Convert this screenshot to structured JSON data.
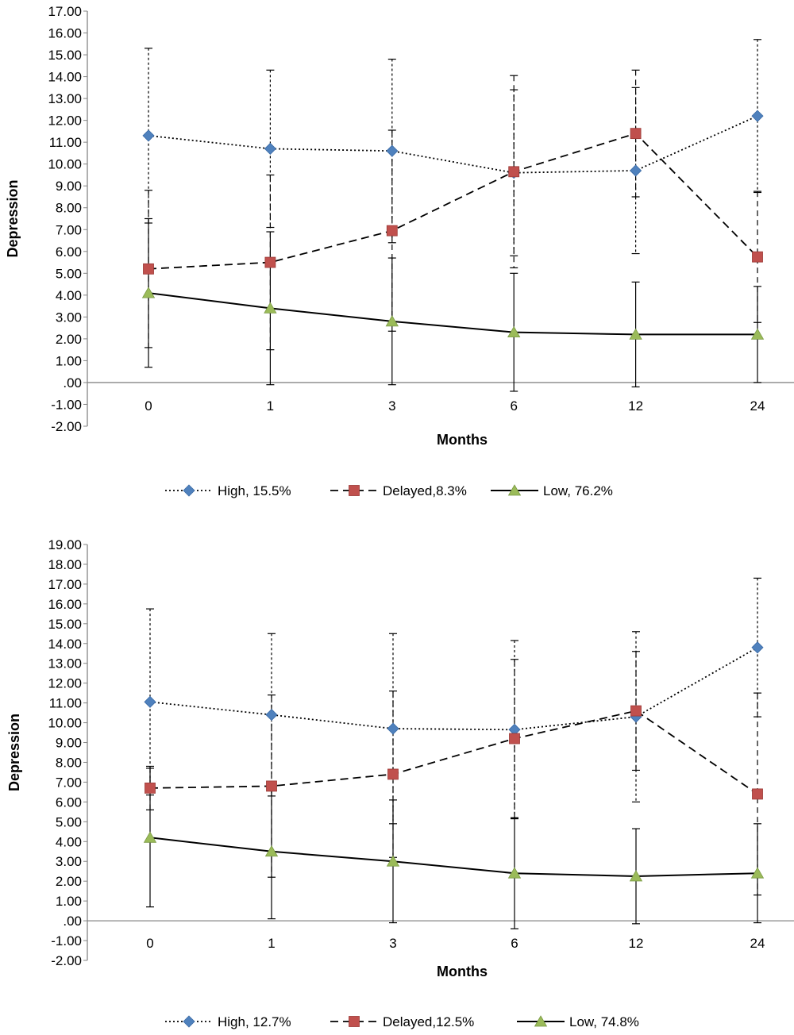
{
  "chart_data": [
    {
      "type": "line",
      "title": "",
      "xlabel": "Months",
      "ylabel": "Depression",
      "categories": [
        "0",
        "1",
        "3",
        "6",
        "12",
        "24"
      ],
      "ylim": [
        -2,
        17
      ],
      "ytick_step": 1,
      "ytick_labels": [
        "-2.00",
        "-1.00",
        ".00",
        "1.00",
        "2.00",
        "3.00",
        "4.00",
        "5.00",
        "6.00",
        "7.00",
        "8.00",
        "9.00",
        "10.00",
        "11.00",
        "12.00",
        "13.00",
        "14.00",
        "15.00",
        "16.00",
        "17.00"
      ],
      "grid": false,
      "legend_position": "bottom",
      "series": [
        {
          "name": "High, 15.5%",
          "marker": "diamond",
          "line_style": "dotted",
          "color": "#4f81bd",
          "values": [
            11.3,
            10.7,
            10.6,
            9.6,
            9.7,
            12.2
          ],
          "error": [
            4.0,
            3.6,
            4.2,
            3.8,
            3.8,
            3.5
          ]
        },
        {
          "name": "Delayed,8.3%",
          "marker": "square",
          "line_style": "dashed",
          "color": "#c0504d",
          "values": [
            5.2,
            5.5,
            6.95,
            9.65,
            11.4,
            5.75
          ],
          "error": [
            3.6,
            4.0,
            4.6,
            4.4,
            2.9,
            3.0
          ]
        },
        {
          "name": "Low, 76.2%",
          "marker": "triangle",
          "line_style": "solid",
          "color": "#9bbb59",
          "values": [
            4.1,
            3.4,
            2.8,
            2.3,
            2.2,
            2.2
          ],
          "error": [
            3.4,
            3.5,
            2.9,
            2.7,
            2.4,
            2.2
          ]
        }
      ]
    },
    {
      "type": "line",
      "title": "",
      "xlabel": "Months",
      "ylabel": "Depression",
      "categories": [
        "0",
        "1",
        "3",
        "6",
        "12",
        "24"
      ],
      "ylim": [
        -2,
        19
      ],
      "ytick_step": 1,
      "ytick_labels": [
        "-2.00",
        "-1.00",
        ".00",
        "1.00",
        "2.00",
        "3.00",
        "4.00",
        "5.00",
        "6.00",
        "7.00",
        "8.00",
        "9.00",
        "10.00",
        "11.00",
        "12.00",
        "13.00",
        "14.00",
        "15.00",
        "16.00",
        "17.00",
        "18.00",
        "19.00"
      ],
      "grid": false,
      "legend_position": "bottom",
      "series": [
        {
          "name": "High, 12.7%",
          "marker": "diamond",
          "line_style": "dotted",
          "color": "#4f81bd",
          "values": [
            11.05,
            10.4,
            9.7,
            9.65,
            10.3,
            13.8
          ],
          "error": [
            4.7,
            4.1,
            4.8,
            4.5,
            4.3,
            3.5
          ]
        },
        {
          "name": "Delayed,12.5%",
          "marker": "square",
          "line_style": "dashed",
          "color": "#c0504d",
          "values": [
            6.7,
            6.8,
            7.4,
            9.2,
            10.6,
            6.4
          ],
          "error": [
            1.1,
            4.6,
            4.2,
            4.0,
            3.0,
            5.1
          ]
        },
        {
          "name": "Low, 74.8%",
          "marker": "triangle",
          "line_style": "solid",
          "color": "#9bbb59",
          "values": [
            4.2,
            3.5,
            3.0,
            2.4,
            2.25,
            2.4
          ],
          "error": [
            3.5,
            3.4,
            3.1,
            2.8,
            2.4,
            2.5
          ]
        }
      ]
    }
  ]
}
